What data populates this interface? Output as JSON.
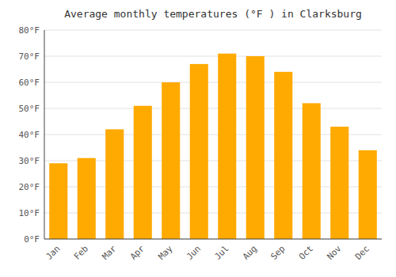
{
  "chart_data": {
    "type": "bar",
    "title": "Average monthly temperatures (°F ) in Clarksburg",
    "categories": [
      "Jan",
      "Feb",
      "Mar",
      "Apr",
      "May",
      "Jun",
      "Jul",
      "Aug",
      "Sep",
      "Oct",
      "Nov",
      "Dec"
    ],
    "values": [
      29,
      31,
      42,
      51,
      60,
      67,
      71,
      70,
      64,
      52,
      43,
      34
    ],
    "color": "#FFAA00",
    "ylim": [
      0,
      80
    ],
    "yticks": [
      {
        "value": 0,
        "label": "0°F"
      },
      {
        "value": 10,
        "label": "10°F"
      },
      {
        "value": 20,
        "label": "20°F"
      },
      {
        "value": 30,
        "label": "30°F"
      },
      {
        "value": 40,
        "label": "40°F"
      },
      {
        "value": 50,
        "label": "50°F"
      },
      {
        "value": 60,
        "label": "60°F"
      },
      {
        "value": 70,
        "label": "70°F"
      },
      {
        "value": 80,
        "label": "80°F"
      }
    ],
    "grid": true
  }
}
